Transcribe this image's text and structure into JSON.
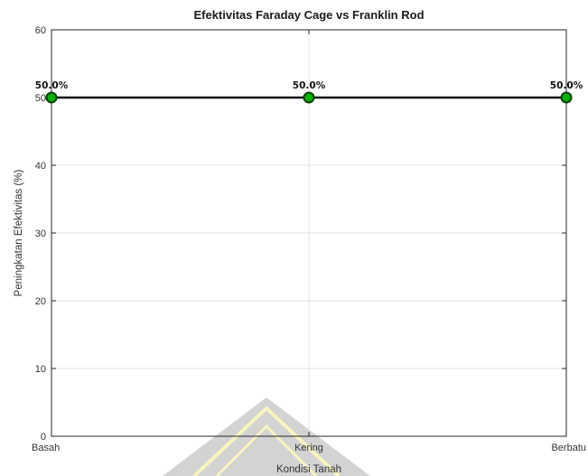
{
  "chart_data": {
    "type": "line",
    "title": "Efektivitas Faraday Cage vs Franklin Rod",
    "xlabel": "Kondisi Tanah",
    "ylabel": "Peningkatan Efektivitas (%)",
    "categories": [
      "Basah",
      "Kering",
      "Berbatu"
    ],
    "series": [
      {
        "values": [
          50.0,
          50.0,
          50.0
        ],
        "labels": [
          "50.0%",
          "50.0%",
          "50.0%"
        ],
        "line_color": "#111111",
        "marker_color": "#00b300",
        "marker_edge_color": "#0a3d0a"
      }
    ],
    "ylim": [
      0,
      60
    ],
    "yticks": [
      "0",
      "10",
      "20",
      "30",
      "40",
      "50",
      "60"
    ],
    "grid": true
  }
}
